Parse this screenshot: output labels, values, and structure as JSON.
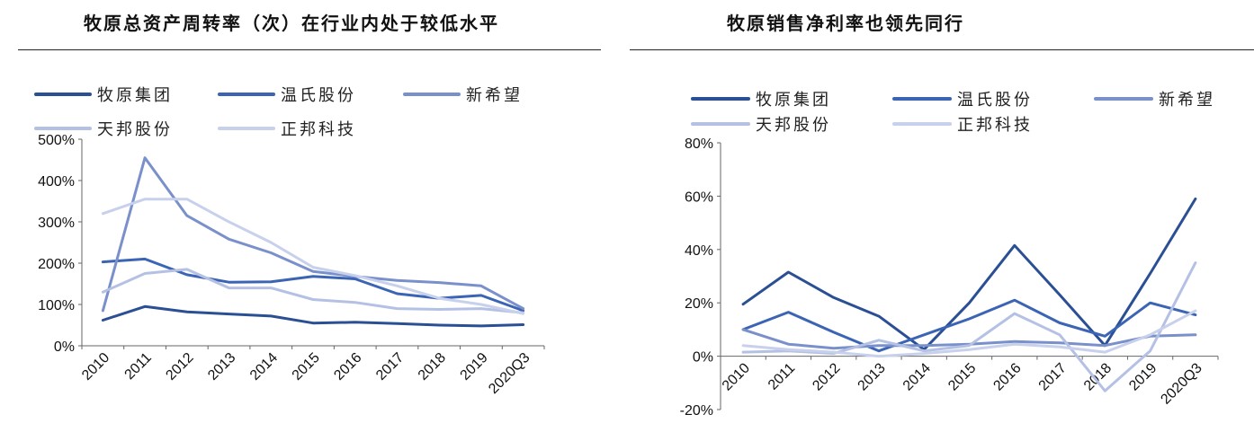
{
  "chart_data": [
    {
      "type": "line",
      "title": "牧原总资产周转率（次）在行业内处于较低水平",
      "categories": [
        "2010",
        "2011",
        "2012",
        "2013",
        "2014",
        "2015",
        "2016",
        "2017",
        "2018",
        "2019",
        "2020Q3"
      ],
      "y_ticks": [
        "0%",
        "100%",
        "200%",
        "300%",
        "400%",
        "500%"
      ],
      "ylim": [
        0,
        500
      ],
      "legend_position": "top",
      "grid": false,
      "series": [
        {
          "name": "牧原集团",
          "color": "#2a4f95",
          "values": [
            62,
            95,
            82,
            77,
            72,
            55,
            57,
            54,
            50,
            48,
            51
          ]
        },
        {
          "name": "温氏股份",
          "color": "#3b64b4",
          "values": [
            203,
            210,
            172,
            154,
            155,
            168,
            162,
            126,
            115,
            122,
            85
          ]
        },
        {
          "name": "新希望",
          "color": "#7990cb",
          "values": [
            85,
            455,
            315,
            258,
            225,
            180,
            168,
            158,
            153,
            145,
            90
          ]
        },
        {
          "name": "天邦股份",
          "color": "#b5c1e4",
          "values": [
            130,
            175,
            185,
            140,
            140,
            112,
            105,
            90,
            88,
            90,
            80
          ]
        },
        {
          "name": "正邦科技",
          "color": "#c8d1ec",
          "values": [
            320,
            355,
            355,
            300,
            250,
            190,
            170,
            145,
            115,
            100,
            78
          ]
        }
      ]
    },
    {
      "type": "line",
      "title": "牧原销售净利率也领先同行",
      "categories": [
        "2010",
        "2011",
        "2012",
        "2013",
        "2014",
        "2015",
        "2016",
        "2017",
        "2018",
        "2019",
        "2020Q3"
      ],
      "y_ticks": [
        "-20%",
        "0%",
        "20%",
        "40%",
        "60%",
        "80%"
      ],
      "ylim": [
        -20,
        80
      ],
      "legend_position": "top",
      "grid": false,
      "series": [
        {
          "name": "牧原集团",
          "color": "#2a4f95",
          "values": [
            19.5,
            31.5,
            22,
            15,
            2.5,
            20,
            41.5,
            23,
            4,
            31,
            59
          ]
        },
        {
          "name": "温氏股份",
          "color": "#3b64b4",
          "values": [
            10,
            16.5,
            9,
            2,
            8,
            14,
            21,
            12.5,
            7.5,
            20,
            15.5
          ]
        },
        {
          "name": "新希望",
          "color": "#7990cb",
          "values": [
            10,
            4.5,
            3,
            4,
            4,
            4.5,
            5.5,
            5,
            4,
            7.5,
            8
          ]
        },
        {
          "name": "天邦股份",
          "color": "#b5c1e4",
          "values": [
            1.5,
            2,
            1,
            6,
            2,
            4,
            16,
            8,
            -13,
            2,
            35
          ]
        },
        {
          "name": "正邦科技",
          "color": "#c8d1ec",
          "values": [
            4,
            2.5,
            1.5,
            0,
            1,
            2.5,
            4.5,
            3.5,
            1.5,
            8,
            17
          ]
        }
      ]
    }
  ]
}
